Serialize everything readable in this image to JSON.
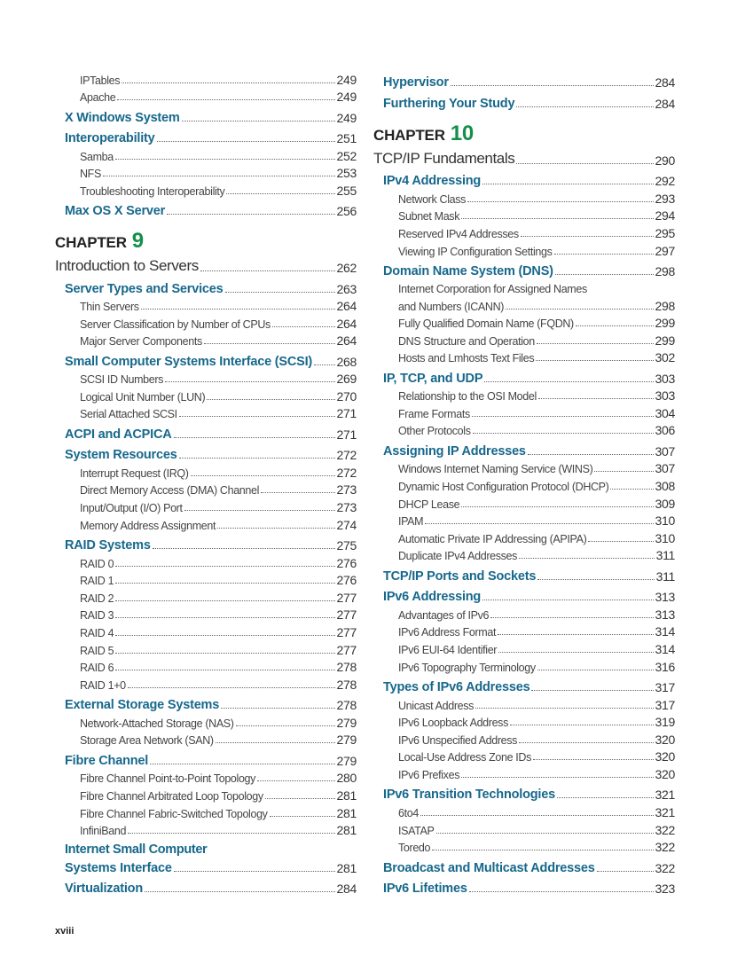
{
  "left": [
    {
      "level": 3,
      "title": "IPTables",
      "page": "249"
    },
    {
      "level": 3,
      "title": "Apache",
      "page": "249"
    },
    {
      "level": 2,
      "title": "X Windows System",
      "page": "249"
    },
    {
      "level": 2,
      "title": "Interoperability",
      "page": "251"
    },
    {
      "level": 3,
      "title": "Samba",
      "page": "252"
    },
    {
      "level": 3,
      "title": "NFS",
      "page": "253"
    },
    {
      "level": 3,
      "title": "Troubleshooting Interoperability",
      "page": "255"
    },
    {
      "level": 2,
      "title": "Max OS X Server",
      "page": "256"
    },
    {
      "level": 0,
      "label": "CHAPTER",
      "number": "9"
    },
    {
      "level": 1,
      "title": "Introduction to Servers",
      "page": "262"
    },
    {
      "level": 2,
      "title": "Server Types and Services",
      "page": "263"
    },
    {
      "level": 3,
      "title": "Thin Servers",
      "page": "264"
    },
    {
      "level": 3,
      "title": "Server Classification by Number of CPUs",
      "page": "264"
    },
    {
      "level": 3,
      "title": "Major Server Components",
      "page": "264"
    },
    {
      "level": 2,
      "title": "Small Computer Systems Interface (SCSI)",
      "page": "268"
    },
    {
      "level": 3,
      "title": "SCSI ID Numbers",
      "page": "269"
    },
    {
      "level": 3,
      "title": "Logical Unit Number (LUN)",
      "page": "270"
    },
    {
      "level": 3,
      "title": "Serial Attached SCSI",
      "page": "271"
    },
    {
      "level": 2,
      "title": "ACPI and ACPICA",
      "page": "271"
    },
    {
      "level": 2,
      "title": "System Resources",
      "page": "272"
    },
    {
      "level": 3,
      "title": "Interrupt Request (IRQ)",
      "page": "272"
    },
    {
      "level": 3,
      "title": "Direct Memory Access (DMA) Channel",
      "page": "273"
    },
    {
      "level": 3,
      "title": "Input/Output (I/O) Port",
      "page": "273"
    },
    {
      "level": 3,
      "title": "Memory Address Assignment",
      "page": "274"
    },
    {
      "level": 2,
      "title": "RAID Systems",
      "page": "275"
    },
    {
      "level": 3,
      "title": "RAID 0",
      "page": "276"
    },
    {
      "level": 3,
      "title": "RAID 1",
      "page": "276"
    },
    {
      "level": 3,
      "title": "RAID 2",
      "page": "277"
    },
    {
      "level": 3,
      "title": "RAID 3",
      "page": "277"
    },
    {
      "level": 3,
      "title": "RAID 4",
      "page": "277"
    },
    {
      "level": 3,
      "title": "RAID 5",
      "page": "277"
    },
    {
      "level": 3,
      "title": "RAID 6",
      "page": "278"
    },
    {
      "level": 3,
      "title": "RAID 1+0",
      "page": "278"
    },
    {
      "level": 2,
      "title": "External Storage Systems",
      "page": "278"
    },
    {
      "level": 3,
      "title": "Network-Attached Storage (NAS)",
      "page": "279"
    },
    {
      "level": 3,
      "title": "Storage Area Network (SAN)",
      "page": "279"
    },
    {
      "level": 2,
      "title": "Fibre Channel",
      "page": "279"
    },
    {
      "level": 3,
      "title": "Fibre Channel Point-to-Point Topology",
      "page": "280"
    },
    {
      "level": 3,
      "title": "Fibre Channel Arbitrated Loop Topology",
      "page": "281"
    },
    {
      "level": 3,
      "title": "Fibre Channel Fabric-Switched Topology",
      "page": "281"
    },
    {
      "level": 3,
      "title": "InfiniBand",
      "page": "281"
    },
    {
      "level": 2,
      "first_line": "Internet Small Computer",
      "title": "Systems Interface",
      "page": "281"
    },
    {
      "level": 2,
      "title": "Virtualization",
      "page": "284"
    }
  ],
  "right": [
    {
      "level": 2,
      "title": "Hypervisor",
      "page": "284"
    },
    {
      "level": 2,
      "title": "Furthering Your Study",
      "page": "284"
    },
    {
      "level": 0,
      "label": "CHAPTER",
      "number": "10"
    },
    {
      "level": 1,
      "title": "TCP/IP Fundamentals",
      "page": "290"
    },
    {
      "level": 2,
      "title": "IPv4 Addressing",
      "page": "292"
    },
    {
      "level": 3,
      "title": "Network Class",
      "page": "293"
    },
    {
      "level": 3,
      "title": "Subnet Mask",
      "page": "294"
    },
    {
      "level": 3,
      "title": "Reserved IPv4 Addresses",
      "page": "295"
    },
    {
      "level": 3,
      "title": "Viewing IP Configuration Settings",
      "page": "297"
    },
    {
      "level": 2,
      "title": "Domain Name System (DNS)",
      "page": "298"
    },
    {
      "level": 3,
      "first_line": "Internet Corporation for Assigned Names",
      "title": "and Numbers (ICANN)",
      "page": "298"
    },
    {
      "level": 3,
      "title": "Fully Qualified Domain Name (FQDN)",
      "page": "299"
    },
    {
      "level": 3,
      "title": "DNS Structure and Operation",
      "page": "299"
    },
    {
      "level": 3,
      "title": "Hosts and Lmhosts Text Files",
      "page": "302"
    },
    {
      "level": 2,
      "title": "IP, TCP, and UDP",
      "page": "303"
    },
    {
      "level": 3,
      "title": "Relationship to the OSI Model",
      "page": "303"
    },
    {
      "level": 3,
      "title": "Frame Formats",
      "page": "304"
    },
    {
      "level": 3,
      "title": "Other Protocols",
      "page": "306"
    },
    {
      "level": 2,
      "title": "Assigning IP Addresses",
      "page": "307"
    },
    {
      "level": 3,
      "title": "Windows Internet Naming Service (WINS)",
      "page": "307"
    },
    {
      "level": 3,
      "title": "Dynamic Host Configuration Protocol (DHCP)",
      "page": "308"
    },
    {
      "level": 3,
      "title": "DHCP Lease",
      "page": "309"
    },
    {
      "level": 3,
      "title": "IPAM",
      "page": "310"
    },
    {
      "level": 3,
      "title": "Automatic Private IP Addressing (APIPA)",
      "page": "310"
    },
    {
      "level": 3,
      "title": "Duplicate IPv4 Addresses",
      "page": "311"
    },
    {
      "level": 2,
      "title": "TCP/IP Ports and Sockets",
      "page": "311"
    },
    {
      "level": 2,
      "title": "IPv6 Addressing",
      "page": "313"
    },
    {
      "level": 3,
      "title": "Advantages of IPv6",
      "page": "313"
    },
    {
      "level": 3,
      "title": "IPv6 Address Format",
      "page": "314"
    },
    {
      "level": 3,
      "title": "IPv6 EUI-64 Identifier",
      "page": "314"
    },
    {
      "level": 3,
      "title": "IPv6 Topography Terminology",
      "page": "316"
    },
    {
      "level": 2,
      "title": "Types of IPv6 Addresses",
      "page": "317"
    },
    {
      "level": 3,
      "title": "Unicast Address",
      "page": "317"
    },
    {
      "level": 3,
      "title": "IPv6 Loopback Address",
      "page": "319"
    },
    {
      "level": 3,
      "title": "IPv6 Unspecified Address",
      "page": "320"
    },
    {
      "level": 3,
      "title": "Local-Use Address Zone IDs",
      "page": "320"
    },
    {
      "level": 3,
      "title": "IPv6 Prefixes",
      "page": "320"
    },
    {
      "level": 2,
      "title": "IPv6 Transition Technologies",
      "page": "321"
    },
    {
      "level": 3,
      "title": "6to4",
      "page": "321"
    },
    {
      "level": 3,
      "title": "ISATAP",
      "page": "322"
    },
    {
      "level": 3,
      "title": "Toredo",
      "page": "322"
    },
    {
      "level": 2,
      "title": "Broadcast and Multicast Addresses",
      "page": "322"
    },
    {
      "level": 2,
      "title": "IPv6 Lifetimes",
      "page": "323"
    }
  ],
  "footer": {
    "page_number": "xviii"
  },
  "colors": {
    "section": "#17688c",
    "chapter_number": "#14904a",
    "text": "#333333"
  }
}
